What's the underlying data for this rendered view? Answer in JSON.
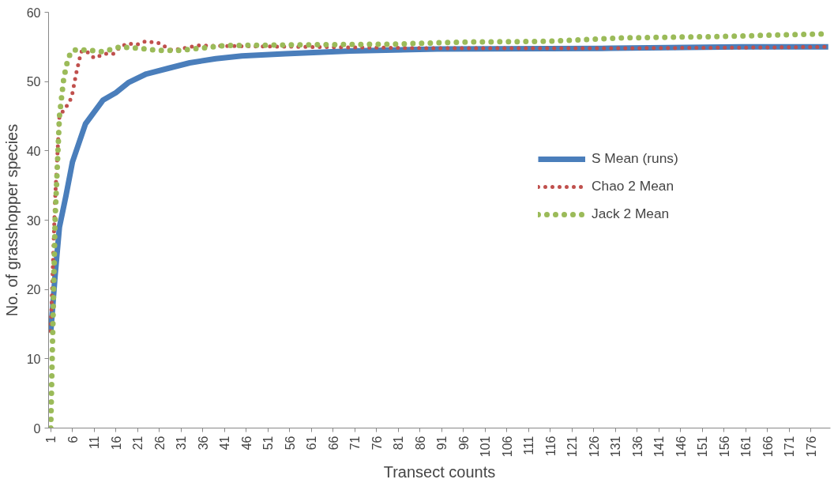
{
  "chart_data": {
    "type": "line",
    "xlabel": "Transect counts",
    "ylabel": "No. of grasshopper species",
    "xlim": [
      0.5,
      180.5
    ],
    "ylim": [
      0,
      60
    ],
    "xticks": [
      1,
      6,
      11,
      16,
      21,
      26,
      31,
      36,
      41,
      46,
      51,
      56,
      61,
      66,
      71,
      76,
      81,
      86,
      91,
      96,
      101,
      106,
      111,
      116,
      121,
      126,
      131,
      136,
      141,
      146,
      151,
      156,
      161,
      166,
      171,
      176
    ],
    "yticks": [
      0,
      10,
      20,
      30,
      40,
      50,
      60
    ],
    "grid": false,
    "legend": "right",
    "series": [
      {
        "name": "S Mean (runs)",
        "color": "#4a7ebb",
        "line_style": "solid",
        "x": [
          1,
          2,
          3,
          4.5,
          6,
          9,
          13,
          16,
          19,
          23,
          28,
          33,
          39,
          45,
          55,
          70,
          90,
          130,
          160,
          180
        ],
        "values": [
          13.8,
          22,
          29,
          33.5,
          38.4,
          43.9,
          47.3,
          48.4,
          49.9,
          51.1,
          51.9,
          52.7,
          53.3,
          53.7,
          54.0,
          54.4,
          54.7,
          54.8,
          55.0,
          55.0
        ]
      },
      {
        "name": "Chao 2 Mean",
        "color": "#c0504d",
        "line_style": "dotted",
        "x": [
          1,
          2,
          3,
          4.7,
          5.8,
          6.9,
          8,
          9,
          11,
          13.4,
          15.4,
          17,
          18.7,
          20.7,
          22.8,
          25.7,
          28.9,
          35,
          45,
          60,
          90,
          130,
          160,
          180
        ],
        "values": [
          14,
          33,
          45,
          46.5,
          47.7,
          51.3,
          54.3,
          54.5,
          53.4,
          54,
          54,
          55,
          55.5,
          55.3,
          55.8,
          55.6,
          54.5,
          55.2,
          55.1,
          55.0,
          54.8,
          54.8,
          54.9,
          55.0
        ]
      },
      {
        "name": "Jack 2 Mean",
        "color": "#9bbb59",
        "line_style": "dotted",
        "x": [
          1,
          2,
          3,
          4,
          5,
          6,
          7,
          10,
          13,
          17,
          21,
          26,
          31,
          41,
          60,
          80,
          96,
          115,
          133,
          155,
          180
        ],
        "values": [
          0,
          30,
          45,
          50.5,
          53.4,
          54.5,
          54.6,
          54.5,
          54.3,
          55,
          54.8,
          54.5,
          54.5,
          55.2,
          55.3,
          55.4,
          55.7,
          55.8,
          56.3,
          56.5,
          56.9
        ]
      }
    ]
  }
}
